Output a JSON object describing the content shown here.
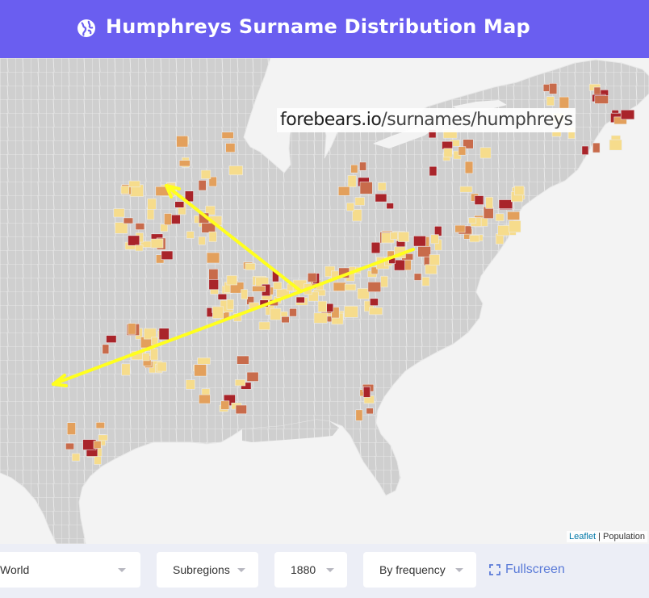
{
  "header": {
    "title": "Humphreys Surname Distribution Map",
    "globe_icon": "globe-icon"
  },
  "watermark": {
    "domain": "forebears.io",
    "path": "/surnames/humphreys"
  },
  "attribution": {
    "leaflet": "Leaflet",
    "separator": " | ",
    "layer": "Population"
  },
  "controls": {
    "region": "World",
    "subregions": "Subregions",
    "year": "1880",
    "mode": "By frequency",
    "fullscreen": "Fullscreen"
  },
  "colors": {
    "header_bg": "#6a5ef0",
    "land": "#cfcfcf",
    "water": "#f3f3f3",
    "low": "#f6dc8c",
    "mid": "#e3a05c",
    "high": "#c86b4b",
    "highest": "#a9242a",
    "arrow": "#ffff1e"
  }
}
